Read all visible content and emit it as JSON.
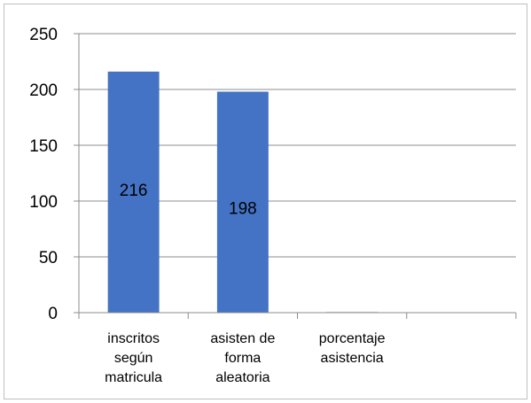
{
  "chart_data": {
    "type": "bar",
    "categories": [
      [
        "inscritos",
        "según",
        "matricula"
      ],
      [
        "asisten de",
        "forma",
        "aleatoria"
      ],
      [
        "porcentaje",
        "asistencia"
      ],
      []
    ],
    "values": [
      216,
      198,
      0.92,
      null
    ],
    "data_labels": [
      "216",
      "198",
      "",
      ""
    ],
    "yticks": [
      "0",
      "50",
      "100",
      "150",
      "200",
      "250"
    ],
    "ylim": [
      0,
      250
    ],
    "grid": true,
    "bar_color": "#4472c4",
    "title": "",
    "xlabel": "",
    "ylabel": ""
  }
}
